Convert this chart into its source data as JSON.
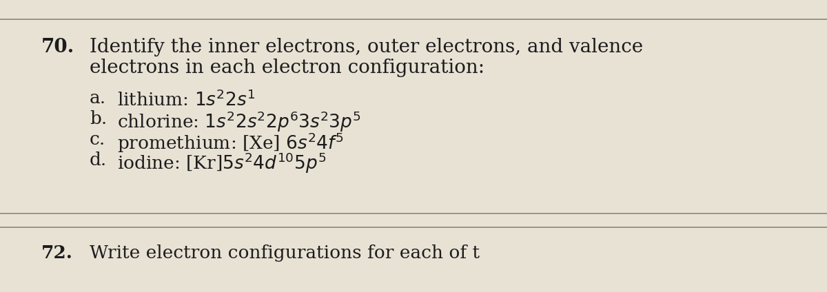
{
  "bg_color": "#e8e2d5",
  "text_color": "#1c1c1c",
  "number": "70.",
  "title_line1": "Identify the inner electrons, outer electrons, and valence",
  "title_line2": "electrons in each electron configuration:",
  "items": [
    {
      "label": "a.",
      "text": "lithium: $1s^{2}2s^{1}$"
    },
    {
      "label": "b.",
      "text": "chlorine: $1s^{2}2s^{2}2p^{6}3s^{2}3p^{5}$"
    },
    {
      "label": "c.",
      "text": "promethium: [Xe] $6s^{2}4f^{5}$"
    },
    {
      "label": "d.",
      "text": "iodine: [Kr]$5s^{2}4d^{10}5p^{5}$"
    }
  ],
  "footer_number": "72.",
  "footer_text": "Write electron configurations for each of t",
  "title_fontsize": 20,
  "item_fontsize": 19,
  "footer_fontsize": 19,
  "line_color": "#888877"
}
